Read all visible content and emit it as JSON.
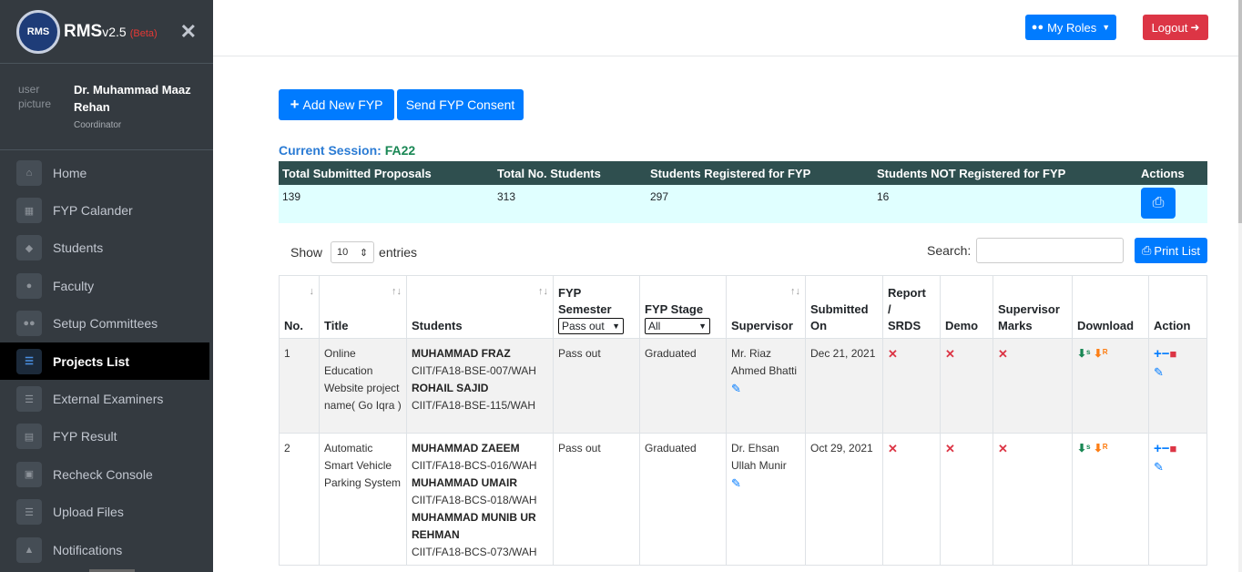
{
  "brand": {
    "logo_text": "RMS",
    "name": "RMS",
    "version": "v2.5",
    "beta": "(Beta)"
  },
  "user": {
    "picture_alt": "user picture",
    "name": "Dr. Muhammad Maaz Rehan",
    "role": "Coordinator"
  },
  "nav": [
    {
      "label": "Home",
      "icon": "home-icon",
      "active": false
    },
    {
      "label": "FYP Calander",
      "icon": "calendar-icon",
      "active": false
    },
    {
      "label": "Students",
      "icon": "graduation-cap-icon",
      "active": false
    },
    {
      "label": "Faculty",
      "icon": "user-icon",
      "active": false
    },
    {
      "label": "Setup Committees",
      "icon": "users-icon",
      "active": false
    },
    {
      "label": "Projects List",
      "icon": "list-icon",
      "active": true
    },
    {
      "label": "External Examiners",
      "icon": "list-icon",
      "active": false
    },
    {
      "label": "FYP Result",
      "icon": "clipboard-icon",
      "active": false
    },
    {
      "label": "Recheck Console",
      "icon": "clipboard-check-icon",
      "active": false
    },
    {
      "label": "Upload Files",
      "icon": "list-icon",
      "active": false
    },
    {
      "label": "Notifications",
      "icon": "bell-icon",
      "active": false
    }
  ],
  "header": {
    "roles_label": "My Roles",
    "logout_label": "Logout"
  },
  "main": {
    "add_label": "Add New FYP",
    "consent_label": "Send FYP Consent",
    "session_label": "Current Session:",
    "session_value": "FA22"
  },
  "summary": {
    "headers": [
      "Total Submitted Proposals",
      "Total No. Students",
      "Students Registered for FYP",
      "Students NOT Registered for FYP",
      "Actions"
    ],
    "values": [
      "139",
      "313",
      "297",
      "16"
    ]
  },
  "controls": {
    "show_label": "Show",
    "entries_value": "10",
    "entries_label": "entries",
    "search_label": "Search:",
    "search_value": "",
    "print_label": "Print List"
  },
  "table": {
    "headers": {
      "no": "No.",
      "title": "Title",
      "students": "Students",
      "semester": "FYP Semester",
      "semester_filter": "Pass out",
      "stage": "FYP Stage",
      "stage_filter": "All",
      "supervisor": "Supervisor",
      "submitted": "Submitted On",
      "report": "Report / SRDS",
      "demo": "Demo",
      "marks": "Supervisor Marks",
      "download": "Download",
      "action": "Action"
    },
    "rows": [
      {
        "no": "1",
        "title": "Online Education Website project name( Go Iqra )",
        "students": [
          {
            "name": "MUHAMMAD FRAZ",
            "id": "CIIT/FA18-BSE-007/WAH"
          },
          {
            "name": "ROHAIL SAJID",
            "id": "CIIT/FA18-BSE-115/WAH"
          }
        ],
        "semester": "Pass out",
        "stage": "Graduated",
        "supervisor": "Mr. Riaz Ahmed Bhatti",
        "submitted": "Dec 21, 2021"
      },
      {
        "no": "2",
        "title": "Automatic Smart Vehicle Parking System",
        "students": [
          {
            "name": "MUHAMMAD ZAEEM",
            "id": "CIIT/FA18-BCS-016/WAH"
          },
          {
            "name": "MUHAMMAD UMAIR",
            "id": "CIIT/FA18-BCS-018/WAH"
          },
          {
            "name": "MUHAMMAD MUNIB UR REHMAN",
            "id": "CIIT/FA18-BCS-073/WAH"
          }
        ],
        "semester": "Pass out",
        "stage": "Graduated",
        "supervisor": "Dr. Ehsan Ullah Munir",
        "submitted": "Oct 29, 2021"
      }
    ]
  }
}
